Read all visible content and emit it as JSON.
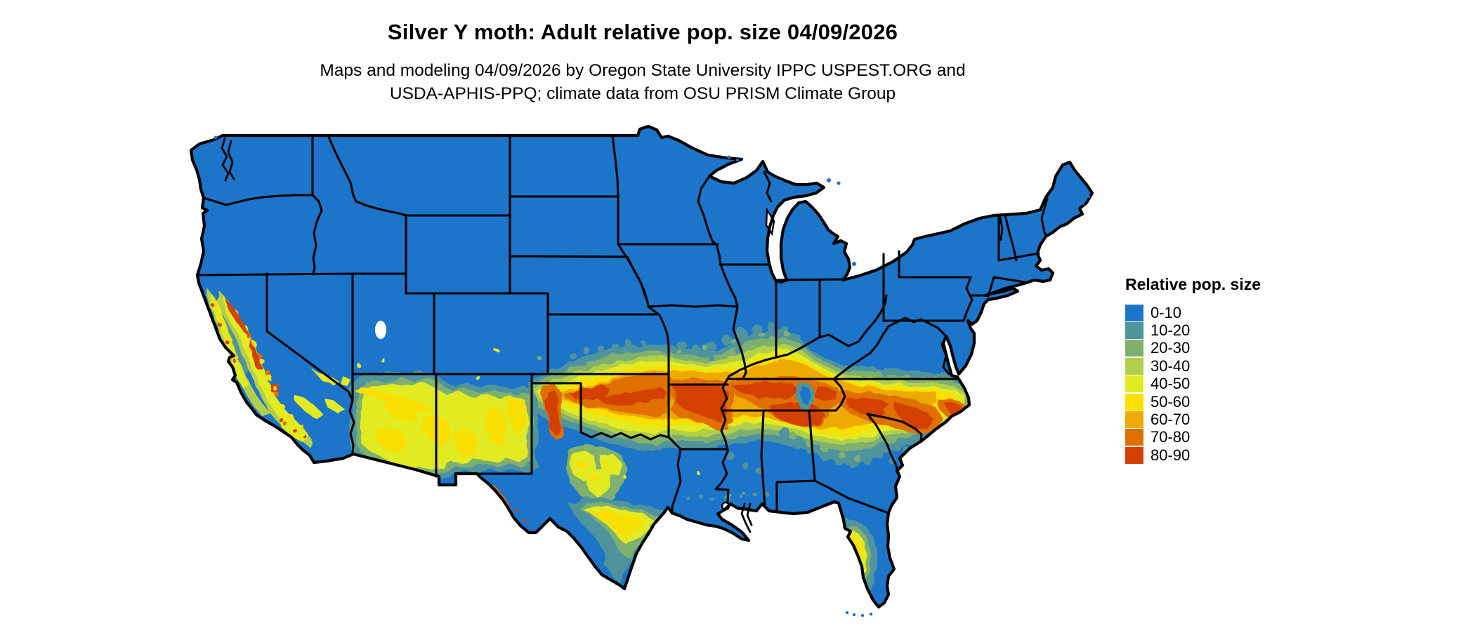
{
  "header": {
    "title": "Silver Y moth: Adult relative pop. size 04/09/2026",
    "subtitle_lines": [
      "Maps and modeling 04/09/2026 by Oregon State University IPPC USPEST.ORG and",
      "USDA-APHIS-PPQ; climate data from OSU PRISM Climate Group"
    ]
  },
  "legend": {
    "title": "Relative pop. size",
    "classes": [
      {
        "label": "0-10",
        "color": "#1c75c8"
      },
      {
        "label": "10-20",
        "color": "#4f949d"
      },
      {
        "label": "20-30",
        "color": "#7fb06e"
      },
      {
        "label": "30-40",
        "color": "#b2cf4a"
      },
      {
        "label": "40-50",
        "color": "#e2ea21"
      },
      {
        "label": "50-60",
        "color": "#f9e000"
      },
      {
        "label": "60-70",
        "color": "#eeaa05"
      },
      {
        "label": "70-80",
        "color": "#e06f03"
      },
      {
        "label": "80-90",
        "color": "#d43f04"
      }
    ]
  },
  "colors": {
    "background": "#ffffff",
    "map_border": "#000000",
    "text": "#000000"
  }
}
